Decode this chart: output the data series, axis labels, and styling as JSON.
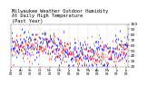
{
  "title": "Milwaukee Weather Outdoor Humidity At Daily High Temperature (Past Year)",
  "ylim": [
    20,
    100
  ],
  "yticks": [
    20,
    30,
    40,
    50,
    60,
    70,
    80,
    90,
    100
  ],
  "ytick_labels": [
    "20",
    "30",
    "40",
    "50",
    "60",
    "70",
    "80",
    "90",
    "100"
  ],
  "num_points": 365,
  "blue_color": "#0000ff",
  "red_color": "#ff0000",
  "bg_color": "#ffffff",
  "grid_color": "#999999",
  "title_fontsize": 3.8,
  "tick_fontsize": 3.2,
  "marker_size": 0.8,
  "line_width": 0.5
}
